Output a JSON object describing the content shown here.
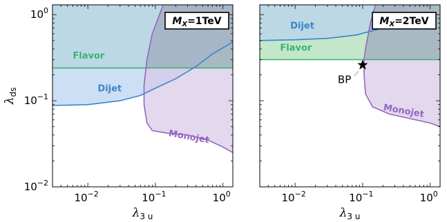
{
  "chart_data": [
    {
      "type": "area",
      "panel": "left",
      "mass_label": {
        "M": "M",
        "X": "X",
        "value": "=1TeV"
      },
      "xlabel": {
        "main": "λ",
        "sub": "3 u"
      },
      "ylabel": {
        "main": "λ",
        "sub": "ds"
      },
      "xscale": "log",
      "yscale": "log",
      "xlim": [
        0.003,
        1.4
      ],
      "ylim": [
        0.01,
        1.3
      ],
      "x_ticks": [
        {
          "value": 0.01,
          "label": "10",
          "exp": "−2"
        },
        {
          "value": 0.1,
          "label": "10",
          "exp": "−1"
        },
        {
          "value": 1,
          "label": "10",
          "exp": "0"
        }
      ],
      "y_ticks": [
        {
          "value": 0.01,
          "label": "10",
          "exp": "−2"
        },
        {
          "value": 0.1,
          "label": "10",
          "exp": "−1"
        },
        {
          "value": 1,
          "label": "10",
          "exp": "0"
        }
      ],
      "regions": [
        {
          "name": "Flavor",
          "label": "Flavor",
          "color": "#3cb371",
          "fill": "#bfe6c7",
          "boundary": [
            [
              0.003,
              0.24
            ],
            [
              1.4,
              0.24
            ]
          ],
          "excluded_side": "above",
          "label_at": [
            0.006,
            0.31
          ]
        },
        {
          "name": "Dijet",
          "label": "Dijet",
          "color": "#3a86c8",
          "fill": "#b8d2ef",
          "boundary": [
            [
              0.003,
              0.088
            ],
            [
              0.01,
              0.09
            ],
            [
              0.03,
              0.1
            ],
            [
              0.06,
              0.115
            ],
            [
              0.1,
              0.14
            ],
            [
              0.2,
              0.18
            ],
            [
              0.4,
              0.25
            ],
            [
              0.7,
              0.35
            ],
            [
              1.4,
              0.48
            ]
          ],
          "excluded_side": "above",
          "label_at": [
            0.014,
            0.128
          ]
        },
        {
          "name": "Monojet",
          "label": "Monojet",
          "color": "#9565c2",
          "fill": "#d7c8e6",
          "boundary": [
            [
              0.13,
              1.3
            ],
            [
              0.115,
              1.0
            ],
            [
              0.09,
              0.6
            ],
            [
              0.075,
              0.3
            ],
            [
              0.068,
              0.15
            ],
            [
              0.068,
              0.09
            ],
            [
              0.075,
              0.055
            ],
            [
              0.09,
              0.045
            ],
            [
              0.15,
              0.042
            ],
            [
              0.3,
              0.04
            ],
            [
              0.6,
              0.035
            ],
            [
              1.0,
              0.029
            ],
            [
              1.4,
              0.025
            ]
          ],
          "excluded_side": "right",
          "label_at": [
            0.155,
            0.039
          ]
        }
      ]
    },
    {
      "type": "area",
      "panel": "right",
      "mass_label": {
        "M": "M",
        "X": "X",
        "value": "=2TeV"
      },
      "xlabel": {
        "main": "λ",
        "sub": "3 u"
      },
      "xscale": "log",
      "yscale": "log",
      "xlim": [
        0.003,
        1.4
      ],
      "ylim": [
        0.01,
        1.3
      ],
      "x_ticks": [
        {
          "value": 0.01,
          "label": "10",
          "exp": "−2"
        },
        {
          "value": 0.1,
          "label": "10",
          "exp": "−1"
        },
        {
          "value": 1,
          "label": "10",
          "exp": "0"
        }
      ],
      "regions": [
        {
          "name": "Flavor",
          "label": "Flavor",
          "color": "#3cb371",
          "fill": "#bfe6c7",
          "boundary": [
            [
              0.003,
              0.3
            ],
            [
              1.4,
              0.3
            ]
          ],
          "excluded_side": "above",
          "label_at": [
            0.006,
            0.38
          ]
        },
        {
          "name": "Dijet",
          "label": "Dijet",
          "color": "#3a86c8",
          "fill": "#b8d2ef",
          "boundary": [
            [
              0.003,
              0.5
            ],
            [
              0.01,
              0.51
            ],
            [
              0.03,
              0.53
            ],
            [
              0.08,
              0.58
            ],
            [
              0.15,
              0.66
            ],
            [
              0.3,
              0.76
            ],
            [
              0.5,
              0.83
            ]
          ],
          "excluded_side": "above",
          "label_at": [
            0.0085,
            0.69
          ]
        },
        {
          "name": "Monojet",
          "label": "Monojet",
          "color": "#9565c2",
          "fill": "#d7c8e6",
          "boundary": [
            [
              0.155,
              1.3
            ],
            [
              0.13,
              0.8
            ],
            [
              0.11,
              0.4
            ],
            [
              0.105,
              0.3
            ],
            [
              0.105,
              0.2
            ],
            [
              0.11,
              0.12
            ],
            [
              0.14,
              0.085
            ],
            [
              0.25,
              0.07
            ],
            [
              0.5,
              0.062
            ],
            [
              1.0,
              0.055
            ],
            [
              1.4,
              0.05
            ]
          ],
          "excluded_side": "right",
          "label_at": [
            0.2,
            0.078
          ]
        }
      ],
      "annotations": [
        {
          "label": "BP",
          "marker": "star",
          "x": 0.1,
          "y": 0.26
        }
      ]
    }
  ]
}
